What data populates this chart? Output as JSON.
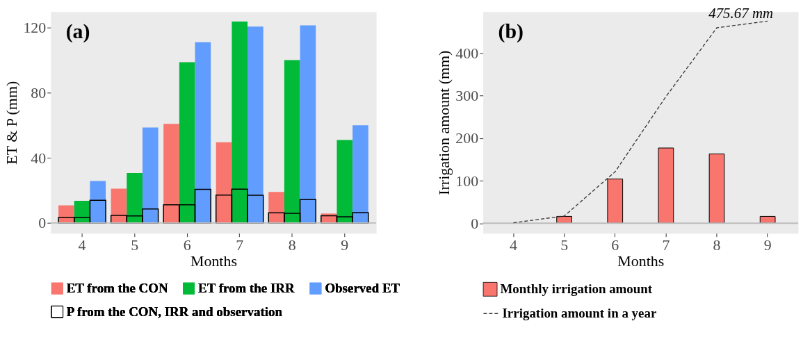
{
  "chart_data": [
    {
      "type": "bar",
      "annotations": [
        "(a)"
      ],
      "xlabel": "Months",
      "ylabel": "ET & P (mm)",
      "categories": [
        "4",
        "5",
        "6",
        "7",
        "8",
        "9"
      ],
      "ylim": [
        -6.3,
        129.8
      ],
      "yticks": [
        0,
        40,
        80,
        120
      ],
      "grid": false,
      "legend": "bottom",
      "ref_lines": [
        {
          "axis": "y",
          "value": 0,
          "color": "#bdbdbd"
        }
      ],
      "series": [
        {
          "name": "ET from the CON",
          "color": "#f8766d",
          "values": [
            10.8,
            21.1,
            60.9,
            49.6,
            19.0,
            5.8
          ]
        },
        {
          "name": "ET from the IRR",
          "color": "#00ba38",
          "values": [
            13.6,
            30.7,
            98.7,
            123.7,
            100.0,
            50.9
          ]
        },
        {
          "name": "Observed ET",
          "color": "#619cff",
          "values": [
            25.8,
            58.6,
            111.0,
            120.6,
            121.4,
            60.0
          ]
        },
        {
          "name": "P from the CON, IRR and observation",
          "color": "#000000",
          "values": [
            3.4,
            4.6,
            11.1,
            17.1,
            6.2,
            4.4
          ]
        },
        {
          "color": "#000000",
          "values": [
            3.4,
            4.3,
            11.1,
            20.8,
            5.9,
            3.8
          ]
        },
        {
          "color": "#000000",
          "values": [
            13.9,
            8.6,
            20.6,
            17.0,
            14.3,
            6.3
          ]
        }
      ]
    },
    {
      "type": "bar",
      "annotations": [
        "(b)",
        {
          "text": "475.67 mm",
          "x": "9",
          "y": 475.67
        }
      ],
      "xlabel": "Months",
      "ylabel": "Irrigation amount (mm)",
      "categories": [
        "4",
        "5",
        "6",
        "7",
        "8",
        "9"
      ],
      "ylim": [
        -23.6,
        498
      ],
      "yticks": [
        0,
        100,
        200,
        300,
        400
      ],
      "grid": false,
      "legend": "bottom",
      "ref_lines": [
        {
          "axis": "y",
          "value": 0,
          "color": "#bdbdbd"
        }
      ],
      "series": [
        {
          "name": "Monthly irrigation amount",
          "color": "#f8766d",
          "values": [
            null,
            16,
            104,
            177,
            163,
            16
          ]
        },
        {
          "name": "Irrigation amount in a year",
          "type": "line",
          "color": "#333333",
          "line_style": "dashed",
          "marker": "none",
          "values": [
            1,
            17,
            121,
            298,
            460,
            475.67
          ]
        }
      ]
    }
  ]
}
